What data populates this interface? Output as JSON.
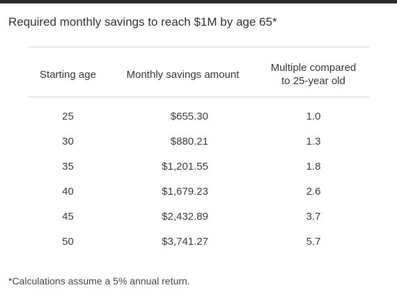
{
  "title": "Required monthly savings to reach $1M by age 65*",
  "table": {
    "headers": {
      "starting_age": "Starting age",
      "monthly_savings": "Monthly savings amount",
      "multiple_line1": "Multiple compared",
      "multiple_line2": "to 25-year old"
    },
    "rows": [
      {
        "age": "25",
        "amount": "$655.30",
        "multiple": "1.0"
      },
      {
        "age": "30",
        "amount": "$880.21",
        "multiple": "1.3"
      },
      {
        "age": "35",
        "amount": "$1,201.55",
        "multiple": "1.8"
      },
      {
        "age": "40",
        "amount": "$1,679.23",
        "multiple": "2.6"
      },
      {
        "age": "45",
        "amount": "$2,432.89",
        "multiple": "3.7"
      },
      {
        "age": "50",
        "amount": "$3,741.27",
        "multiple": "5.7"
      }
    ]
  },
  "footnote": "*Calculations assume a 5% annual return."
}
